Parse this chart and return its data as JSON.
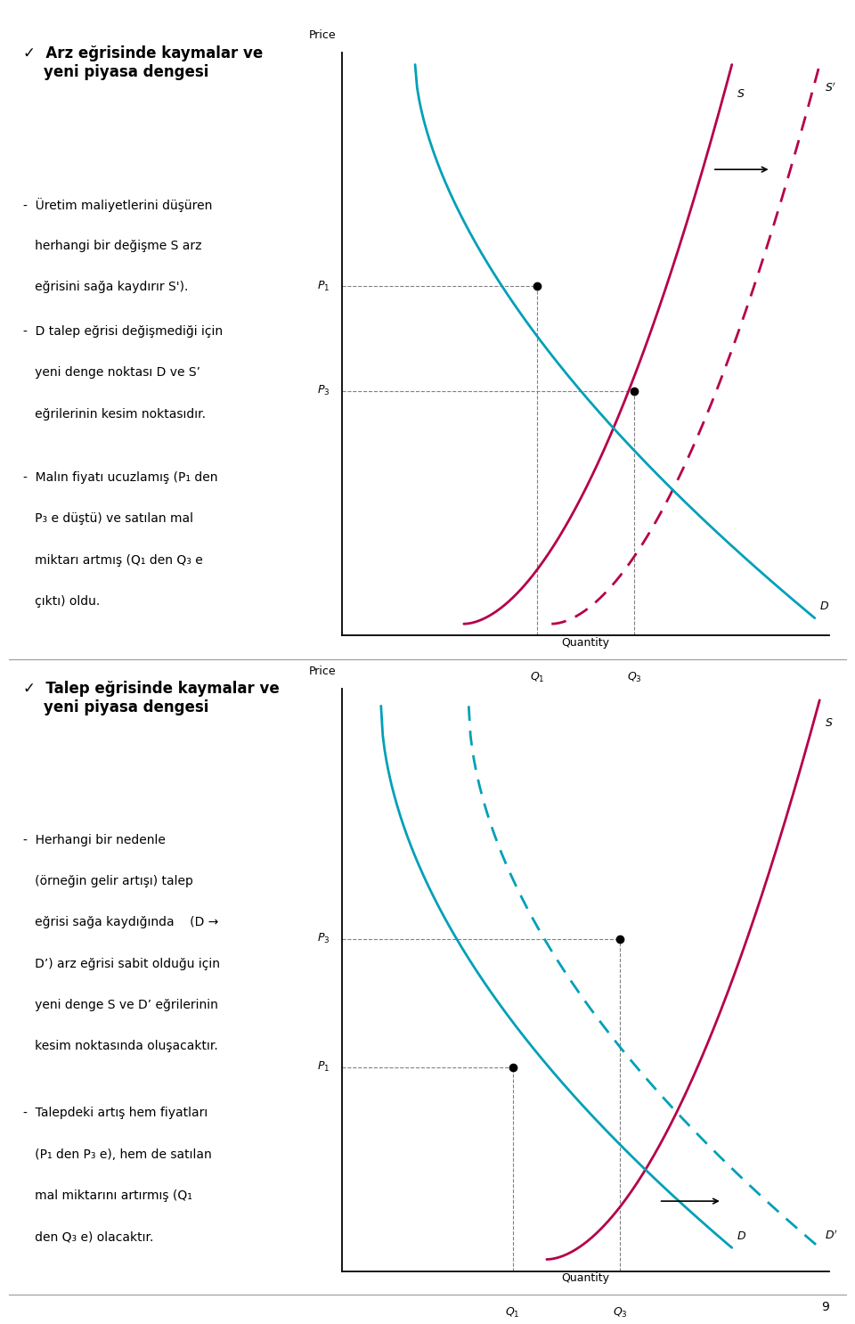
{
  "chart1": {
    "supply_color": "#b5004a",
    "demand_color": "#00a0b8",
    "P1": 0.6,
    "P3": 0.42,
    "Q1": 0.4,
    "Q3": 0.6,
    "x_label": "Quantity",
    "y_label": "Price"
  },
  "chart2": {
    "supply_color": "#b5004a",
    "demand_color": "#00a0b8",
    "P1": 0.35,
    "P3": 0.57,
    "Q1": 0.35,
    "Q3": 0.57,
    "x_label": "Quantity",
    "y_label": "Price"
  },
  "bg_color": "#ffffff",
  "text_color": "#000000",
  "divider_color": "#999999",
  "page_number": "9"
}
